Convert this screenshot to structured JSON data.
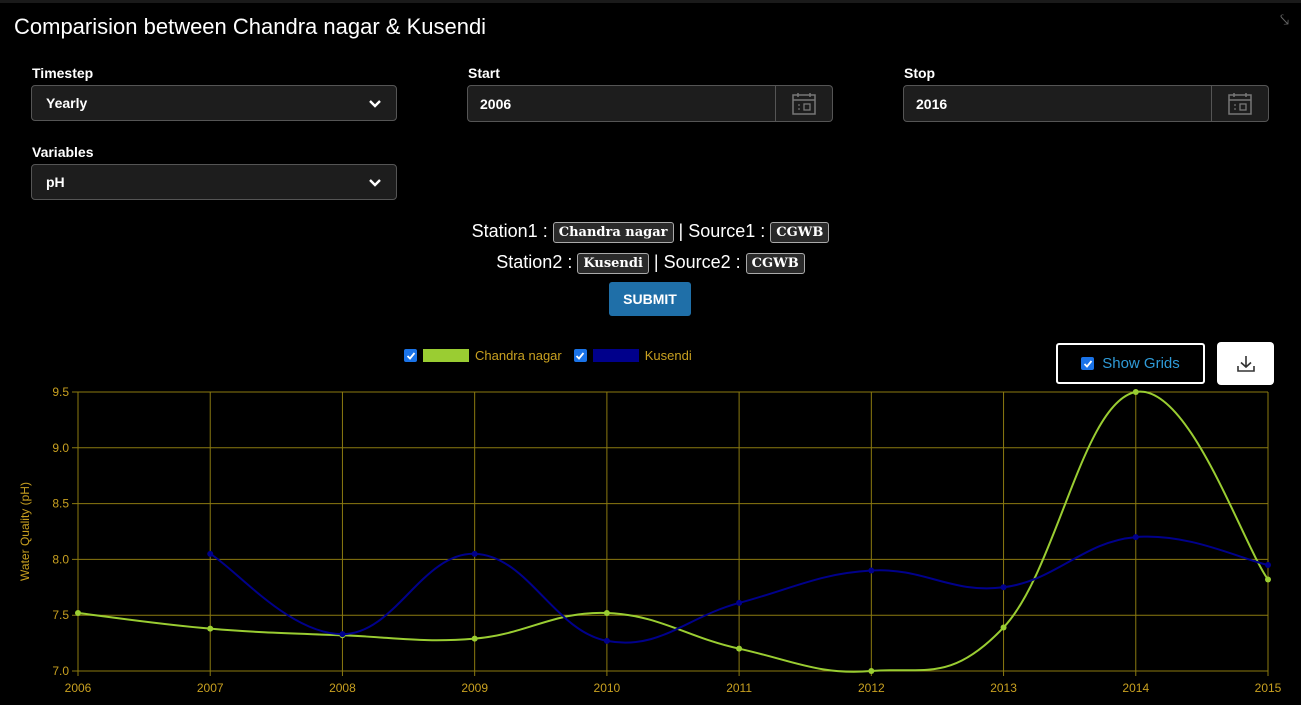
{
  "header": {
    "title": "Comparision between Chandra nagar & Kusendi",
    "close_icon": "collapse-icon"
  },
  "form": {
    "timestep_label": "Timestep",
    "timestep_value": "Yearly",
    "start_label": "Start",
    "start_value": "2006",
    "stop_label": "Stop",
    "stop_value": "2016",
    "variables_label": "Variables",
    "variables_value": "pH"
  },
  "stations": {
    "station1_label": "Station1 :",
    "station1_value": "Chandra nagar",
    "source1_label": "| Source1 :",
    "source1_value": "CGWB",
    "station2_label": "Station2 :",
    "station2_value": "Kusendi",
    "source2_label": "| Source2 :",
    "source2_value": "CGWB"
  },
  "submit_label": "SUBMIT",
  "show_grids_label": "Show Grids",
  "colors": {
    "series1": "#9acd32",
    "series2": "#00008b",
    "grid": "#8b7a10",
    "axis_text": "#c8a020"
  },
  "chart_data": {
    "type": "line",
    "ylabel": "Water Quality (pH)",
    "xlabel": "",
    "x": [
      "2006",
      "2007",
      "2008",
      "2009",
      "2010",
      "2011",
      "2012",
      "2013",
      "2014",
      "2015"
    ],
    "ylim": [
      7.0,
      9.5
    ],
    "yticks": [
      "7.0",
      "7.5",
      "8.0",
      "8.5",
      "9.0",
      "9.5"
    ],
    "grid": true,
    "legend_position": "top-center",
    "series": [
      {
        "name": "Chandra nagar",
        "values": [
          7.52,
          7.38,
          7.32,
          7.29,
          7.52,
          7.2,
          7.0,
          7.39,
          9.5,
          7.82
        ]
      },
      {
        "name": "Kusendi",
        "values": [
          null,
          8.05,
          7.33,
          8.05,
          7.27,
          7.61,
          7.9,
          7.75,
          8.2,
          7.95
        ]
      }
    ]
  }
}
